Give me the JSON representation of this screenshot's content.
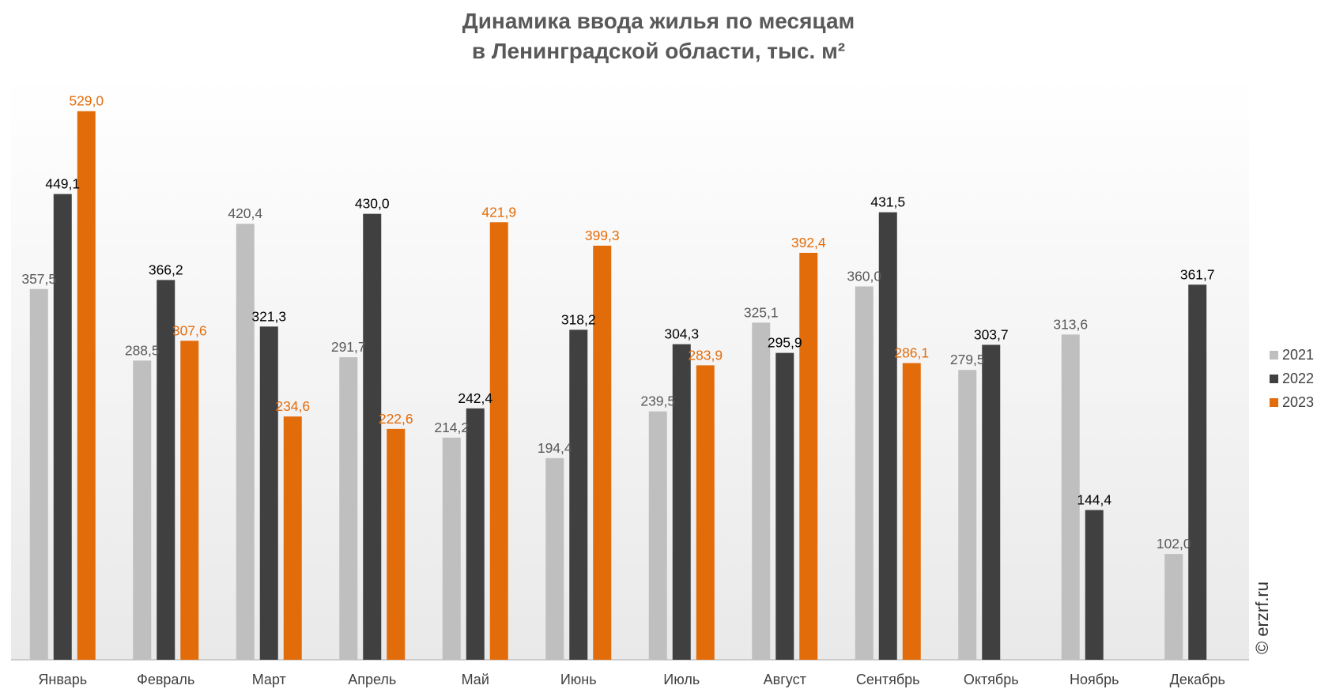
{
  "chart_data": {
    "type": "bar",
    "title_line1": "Динамика ввода жилья по месяцам",
    "title_line2": "в Ленинградской области, тыс. м²",
    "categories": [
      "Январь",
      "Февраль",
      "Март",
      "Апрель",
      "Май",
      "Июнь",
      "Июль",
      "Август",
      "Сентябрь",
      "Октябрь",
      "Ноябрь",
      "Декабрь"
    ],
    "series": [
      {
        "name": "2021",
        "color": "#bfbfbf",
        "label_color": "#595959",
        "values": [
          357.5,
          288.5,
          420.4,
          291.7,
          214.2,
          194.4,
          239.5,
          325.1,
          360.0,
          279.5,
          313.6,
          102.0
        ],
        "labels": [
          "357,5",
          "288,5",
          "420,4",
          "291,7",
          "214,2",
          "194,4",
          "239,5",
          "325,1",
          "360,0",
          "279,5",
          "313,6",
          "102,0"
        ]
      },
      {
        "name": "2022",
        "color": "#404040",
        "label_color": "#000000",
        "values": [
          449.1,
          366.2,
          321.3,
          430.0,
          242.4,
          318.2,
          304.3,
          295.9,
          431.5,
          303.7,
          144.4,
          361.7
        ],
        "labels": [
          "449,1",
          "366,2",
          "321,3",
          "430,0",
          "242,4",
          "318,2",
          "304,3",
          "295,9",
          "431,5",
          "303,7",
          "144,4",
          "361,7"
        ]
      },
      {
        "name": "2023",
        "color": "#e36c0a",
        "label_color": "#e36c0a",
        "values": [
          529.0,
          307.6,
          234.6,
          222.6,
          421.9,
          399.3,
          283.9,
          392.4,
          286.1,
          null,
          null,
          null
        ],
        "labels": [
          "529,0",
          "307,6",
          "234,6",
          "222,6",
          "421,9",
          "399,3",
          "283,9",
          "392,4",
          "286,1",
          "",
          "",
          ""
        ]
      }
    ],
    "ylim": [
      0,
      580
    ],
    "legend_position": "right",
    "grid": false,
    "watermark": "© erzrf.ru"
  }
}
